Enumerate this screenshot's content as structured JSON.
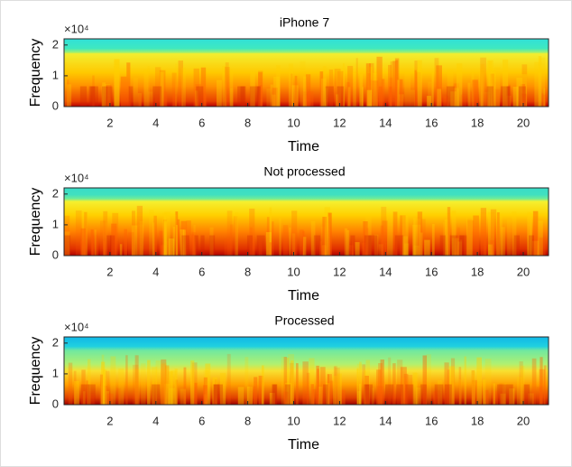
{
  "chart_data": [
    {
      "type": "spectrogram",
      "title": "iPhone 7",
      "xlabel": "Time",
      "ylabel": "Frequency",
      "y_exponent": "×10⁴",
      "xlim": [
        0,
        21.1
      ],
      "ylim": [
        0,
        2.2
      ],
      "xticks": [
        2,
        4,
        6,
        8,
        10,
        12,
        14,
        16,
        18,
        20
      ],
      "yticks": [
        0,
        1,
        2
      ]
    },
    {
      "type": "spectrogram",
      "title": "Not processed",
      "xlabel": "Time",
      "ylabel": "Frequency",
      "y_exponent": "×10⁴",
      "xlim": [
        0,
        21.1
      ],
      "ylim": [
        0,
        2.2
      ],
      "xticks": [
        2,
        4,
        6,
        8,
        10,
        12,
        14,
        16,
        18,
        20
      ],
      "yticks": [
        0,
        1,
        2
      ]
    },
    {
      "type": "spectrogram",
      "title": "Processed",
      "xlabel": "Time",
      "ylabel": "Frequency",
      "y_exponent": "×10⁴",
      "xlim": [
        0,
        21.1
      ],
      "ylim": [
        0,
        2.2
      ],
      "xticks": [
        2,
        4,
        6,
        8,
        10,
        12,
        14,
        16,
        18,
        20
      ],
      "yticks": [
        0,
        1,
        2
      ]
    }
  ]
}
